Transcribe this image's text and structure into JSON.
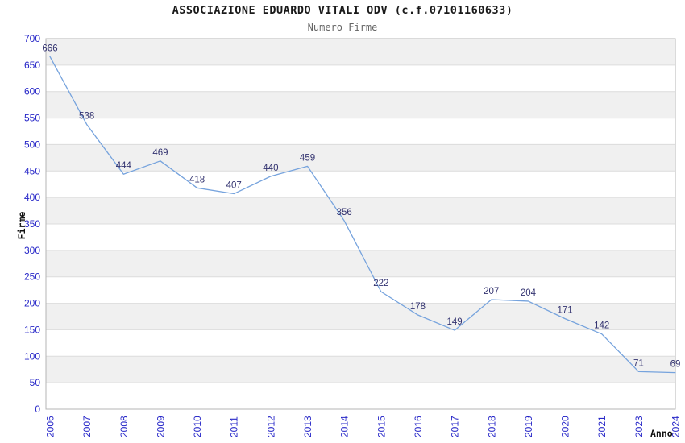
{
  "title": "ASSOCIAZIONE EDUARDO VITALI ODV (c.f.07101160633)",
  "subtitle": "Numero Firme",
  "chart_data": {
    "type": "line",
    "title": "ASSOCIAZIONE EDUARDO VITALI ODV (c.f.07101160633)",
    "subtitle": "Numero Firme",
    "xlabel": "Anno",
    "ylabel": "Firme",
    "categories": [
      "2006",
      "2007",
      "2008",
      "2009",
      "2010",
      "2011",
      "2012",
      "2013",
      "2014",
      "2015",
      "2016",
      "2017",
      "2018",
      "2019",
      "2020",
      "2021",
      "2023",
      "2024"
    ],
    "values": [
      666,
      538,
      444,
      469,
      418,
      407,
      440,
      459,
      356,
      222,
      178,
      149,
      207,
      204,
      171,
      142,
      71,
      69
    ],
    "ylim": [
      0,
      700
    ],
    "ytick_step": 50,
    "yticks": [
      0,
      50,
      100,
      150,
      200,
      250,
      300,
      350,
      400,
      450,
      500,
      550,
      600,
      650,
      700
    ],
    "grid": true,
    "alternating_bands": true,
    "legend": "none",
    "point_labels_visible": true,
    "colors": {
      "line": "#76a3dd",
      "tick_label": "#2727c8",
      "point_label": "#333370",
      "band_gray": "#f0f0f0",
      "band_white": "#ffffff",
      "gridline": "#dcdcdc",
      "plot_border": "#b4b4b4",
      "title": "#1a1a1a",
      "subtitle": "#666666"
    }
  }
}
